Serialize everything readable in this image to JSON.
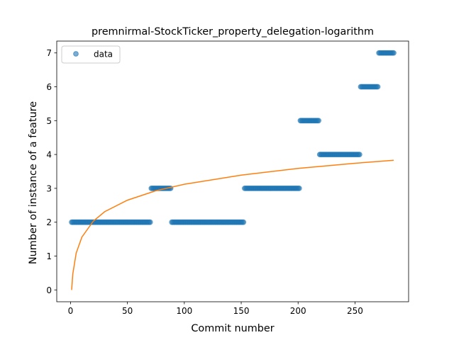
{
  "chart_data": {
    "type": "scatter",
    "title": "premnirmal-StockTicker_property_delegation-logarithm",
    "xlabel": "Commit number",
    "ylabel": "Number of instance of a feature",
    "xlim": [
      -12.1,
      297.1
    ],
    "ylim": [
      -0.35,
      7.35
    ],
    "xticks": [
      0,
      50,
      100,
      150,
      200,
      250
    ],
    "yticks": [
      0,
      1,
      2,
      3,
      4,
      5,
      6,
      7
    ],
    "legend": {
      "position": "upper-left",
      "entries": [
        "data"
      ]
    },
    "grid": false,
    "colors": {
      "data": "#1f77b4",
      "fit": "#ff7f0e"
    },
    "series": [
      {
        "name": "data",
        "kind": "scatter",
        "segments": [
          {
            "x_start": 1,
            "x_end": 70,
            "y": 2
          },
          {
            "x_start": 71,
            "x_end": 88,
            "y": 3
          },
          {
            "x_start": 89,
            "x_end": 152,
            "y": 2
          },
          {
            "x_start": 153,
            "x_end": 201,
            "y": 3
          },
          {
            "x_start": 202,
            "x_end": 218,
            "y": 5
          },
          {
            "x_start": 219,
            "x_end": 254,
            "y": 4
          },
          {
            "x_start": 255,
            "x_end": 270,
            "y": 6
          },
          {
            "x_start": 271,
            "x_end": 284,
            "y": 7
          }
        ]
      },
      {
        "kind": "line",
        "function": "logarithmic fit",
        "points": [
          [
            1,
            0.0
          ],
          [
            2,
            0.47
          ],
          [
            5,
            1.09
          ],
          [
            10,
            1.56
          ],
          [
            20,
            2.03
          ],
          [
            30,
            2.31
          ],
          [
            50,
            2.65
          ],
          [
            75,
            2.93
          ],
          [
            100,
            3.12
          ],
          [
            150,
            3.39
          ],
          [
            200,
            3.59
          ],
          [
            250,
            3.74
          ],
          [
            284,
            3.83
          ]
        ]
      }
    ]
  }
}
